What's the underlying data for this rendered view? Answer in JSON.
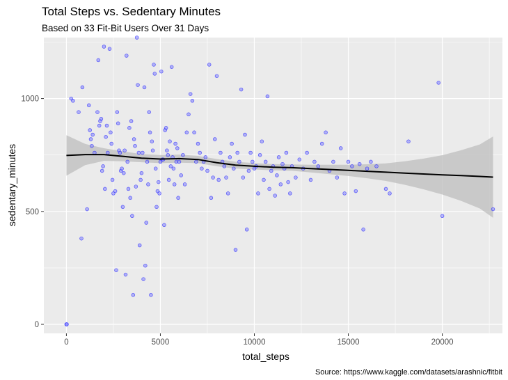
{
  "chart_data": {
    "type": "scatter",
    "title": "Total Steps vs. Sedentary Minutes",
    "subtitle": "Based on 33 Fit-Bit Users Over 31 Days",
    "xlabel": "total_steps",
    "ylabel": "sedentary_minutes",
    "caption": "Source: https://www.kaggle.com/datasets/arashnic/fitbit",
    "xlim": [
      -1200,
      23200
    ],
    "ylim": [
      -40,
      1270
    ],
    "x_ticks": [
      0,
      5000,
      10000,
      15000,
      20000
    ],
    "y_ticks": [
      0,
      500,
      1000
    ],
    "x_tick_labels": [
      "0",
      "5000",
      "10000",
      "15000",
      "20000"
    ],
    "y_tick_labels": [
      "0",
      "500",
      "1000"
    ],
    "grid": true,
    "legend": "none",
    "colors": {
      "panel_background": "#ebebeb",
      "grid_major": "#ffffff",
      "point_fill": "#8080ff",
      "point_stroke": "#0000ff",
      "smooth_line": "#000000",
      "confidence_band": "#bdbdbd"
    },
    "series": [
      {
        "type": "scatter",
        "points": [
          [
            0,
            0
          ],
          [
            20,
            0
          ],
          [
            250,
            1000
          ],
          [
            350,
            990
          ],
          [
            650,
            940
          ],
          [
            800,
            380
          ],
          [
            850,
            1050
          ],
          [
            1100,
            510
          ],
          [
            1200,
            970
          ],
          [
            1300,
            820
          ],
          [
            1250,
            860
          ],
          [
            1350,
            790
          ],
          [
            1400,
            840
          ],
          [
            1500,
            760
          ],
          [
            1650,
            940
          ],
          [
            1700,
            1170
          ],
          [
            1750,
            880
          ],
          [
            1800,
            900
          ],
          [
            1850,
            910
          ],
          [
            1900,
            680
          ],
          [
            1950,
            700
          ],
          [
            2000,
            1230
          ],
          [
            2050,
            600
          ],
          [
            2100,
            830
          ],
          [
            2150,
            880
          ],
          [
            2200,
            760
          ],
          [
            2300,
            1220
          ],
          [
            2350,
            850
          ],
          [
            2400,
            800
          ],
          [
            2450,
            640
          ],
          [
            2500,
            580
          ],
          [
            2600,
            590
          ],
          [
            2650,
            240
          ],
          [
            2700,
            940
          ],
          [
            2750,
            890
          ],
          [
            2800,
            770
          ],
          [
            2850,
            760
          ],
          [
            2900,
            680
          ],
          [
            2950,
            690
          ],
          [
            3000,
            520
          ],
          [
            3050,
            670
          ],
          [
            3100,
            770
          ],
          [
            3150,
            220
          ],
          [
            3200,
            1190
          ],
          [
            3250,
            720
          ],
          [
            3300,
            600
          ],
          [
            3350,
            870
          ],
          [
            3400,
            560
          ],
          [
            3450,
            900
          ],
          [
            3500,
            480
          ],
          [
            3550,
            130
          ],
          [
            3600,
            820
          ],
          [
            3650,
            790
          ],
          [
            3700,
            610
          ],
          [
            3750,
            1270
          ],
          [
            3800,
            1060
          ],
          [
            3850,
            760
          ],
          [
            3900,
            350
          ],
          [
            3950,
            640
          ],
          [
            4000,
            670
          ],
          [
            4050,
            760
          ],
          [
            4100,
            200
          ],
          [
            4150,
            1050
          ],
          [
            4200,
            260
          ],
          [
            4250,
            450
          ],
          [
            4300,
            720
          ],
          [
            4350,
            620
          ],
          [
            4400,
            940
          ],
          [
            4450,
            850
          ],
          [
            4500,
            130
          ],
          [
            4550,
            810
          ],
          [
            4600,
            770
          ],
          [
            4650,
            1150
          ],
          [
            4700,
            1110
          ],
          [
            4750,
            690
          ],
          [
            4800,
            520
          ],
          [
            4850,
            590
          ],
          [
            4900,
            630
          ],
          [
            4950,
            580
          ],
          [
            5000,
            720
          ],
          [
            5050,
            1120
          ],
          [
            5100,
            730
          ],
          [
            5150,
            730
          ],
          [
            5200,
            440
          ],
          [
            5250,
            860
          ],
          [
            5300,
            870
          ],
          [
            5350,
            770
          ],
          [
            5400,
            750
          ],
          [
            5450,
            640
          ],
          [
            5500,
            810
          ],
          [
            5550,
            700
          ],
          [
            5600,
            1140
          ],
          [
            5650,
            740
          ],
          [
            5700,
            690
          ],
          [
            5750,
            620
          ],
          [
            5800,
            800
          ],
          [
            5850,
            720
          ],
          [
            5900,
            780
          ],
          [
            5950,
            560
          ],
          [
            6000,
            720
          ],
          [
            6100,
            660
          ],
          [
            6200,
            750
          ],
          [
            6300,
            620
          ],
          [
            6400,
            850
          ],
          [
            6500,
            930
          ],
          [
            6600,
            1020
          ],
          [
            6700,
            990
          ],
          [
            6800,
            850
          ],
          [
            6900,
            720
          ],
          [
            7000,
            800
          ],
          [
            7100,
            760
          ],
          [
            7200,
            690
          ],
          [
            7300,
            720
          ],
          [
            7400,
            740
          ],
          [
            7500,
            680
          ],
          [
            7600,
            1150
          ],
          [
            7700,
            560
          ],
          [
            7800,
            650
          ],
          [
            7900,
            820
          ],
          [
            8000,
            1100
          ],
          [
            8100,
            640
          ],
          [
            8200,
            760
          ],
          [
            8300,
            720
          ],
          [
            8400,
            700
          ],
          [
            8500,
            650
          ],
          [
            8600,
            580
          ],
          [
            8700,
            740
          ],
          [
            8800,
            800
          ],
          [
            8900,
            690
          ],
          [
            9000,
            330
          ],
          [
            9100,
            760
          ],
          [
            9200,
            720
          ],
          [
            9300,
            1040
          ],
          [
            9400,
            650
          ],
          [
            9500,
            840
          ],
          [
            9600,
            420
          ],
          [
            9700,
            680
          ],
          [
            9800,
            760
          ],
          [
            9900,
            720
          ],
          [
            10000,
            690
          ],
          [
            10100,
            700
          ],
          [
            10200,
            580
          ],
          [
            10300,
            750
          ],
          [
            10400,
            810
          ],
          [
            10500,
            640
          ],
          [
            10600,
            720
          ],
          [
            10700,
            1010
          ],
          [
            10800,
            600
          ],
          [
            10900,
            680
          ],
          [
            11000,
            700
          ],
          [
            11100,
            570
          ],
          [
            11200,
            660
          ],
          [
            11300,
            740
          ],
          [
            11400,
            620
          ],
          [
            11500,
            710
          ],
          [
            11600,
            690
          ],
          [
            11700,
            760
          ],
          [
            11800,
            630
          ],
          [
            11900,
            580
          ],
          [
            12000,
            700
          ],
          [
            12200,
            650
          ],
          [
            12400,
            730
          ],
          [
            12600,
            690
          ],
          [
            12800,
            760
          ],
          [
            13000,
            640
          ],
          [
            13200,
            720
          ],
          [
            13400,
            700
          ],
          [
            13600,
            800
          ],
          [
            13800,
            850
          ],
          [
            14000,
            680
          ],
          [
            14200,
            720
          ],
          [
            14400,
            650
          ],
          [
            14600,
            780
          ],
          [
            14800,
            580
          ],
          [
            15000,
            720
          ],
          [
            15200,
            700
          ],
          [
            15400,
            590
          ],
          [
            15600,
            710
          ],
          [
            15800,
            420
          ],
          [
            16000,
            690
          ],
          [
            16200,
            720
          ],
          [
            16500,
            700
          ],
          [
            17000,
            600
          ],
          [
            17200,
            580
          ],
          [
            18200,
            810
          ],
          [
            19800,
            1070
          ],
          [
            20000,
            480
          ],
          [
            22700,
            510
          ]
        ]
      },
      {
        "type": "smooth",
        "points": [
          [
            0,
            748
          ],
          [
            1000,
            752
          ],
          [
            2000,
            752
          ],
          [
            3000,
            744
          ],
          [
            4000,
            736
          ],
          [
            5000,
            732
          ],
          [
            6000,
            734
          ],
          [
            7000,
            730
          ],
          [
            8000,
            716
          ],
          [
            9000,
            705
          ],
          [
            10000,
            700
          ],
          [
            11000,
            696
          ],
          [
            12000,
            694
          ],
          [
            13000,
            690
          ],
          [
            14000,
            686
          ],
          [
            15000,
            682
          ],
          [
            16000,
            678
          ],
          [
            17000,
            674
          ],
          [
            18000,
            670
          ],
          [
            19000,
            666
          ],
          [
            20000,
            662
          ],
          [
            21000,
            659
          ],
          [
            22000,
            655
          ],
          [
            22700,
            652
          ]
        ],
        "ci_lower": [
          658,
          705,
          724,
          722,
          718,
          714,
          716,
          714,
          700,
          690,
          686,
          682,
          680,
          673,
          665,
          657,
          647,
          635,
          618,
          598,
          575,
          547,
          513,
          472
        ],
        "ci_upper": [
          838,
          799,
          780,
          766,
          754,
          750,
          752,
          746,
          732,
          720,
          714,
          710,
          708,
          707,
          707,
          707,
          709,
          713,
          722,
          734,
          749,
          771,
          797,
          832
        ]
      }
    ]
  }
}
